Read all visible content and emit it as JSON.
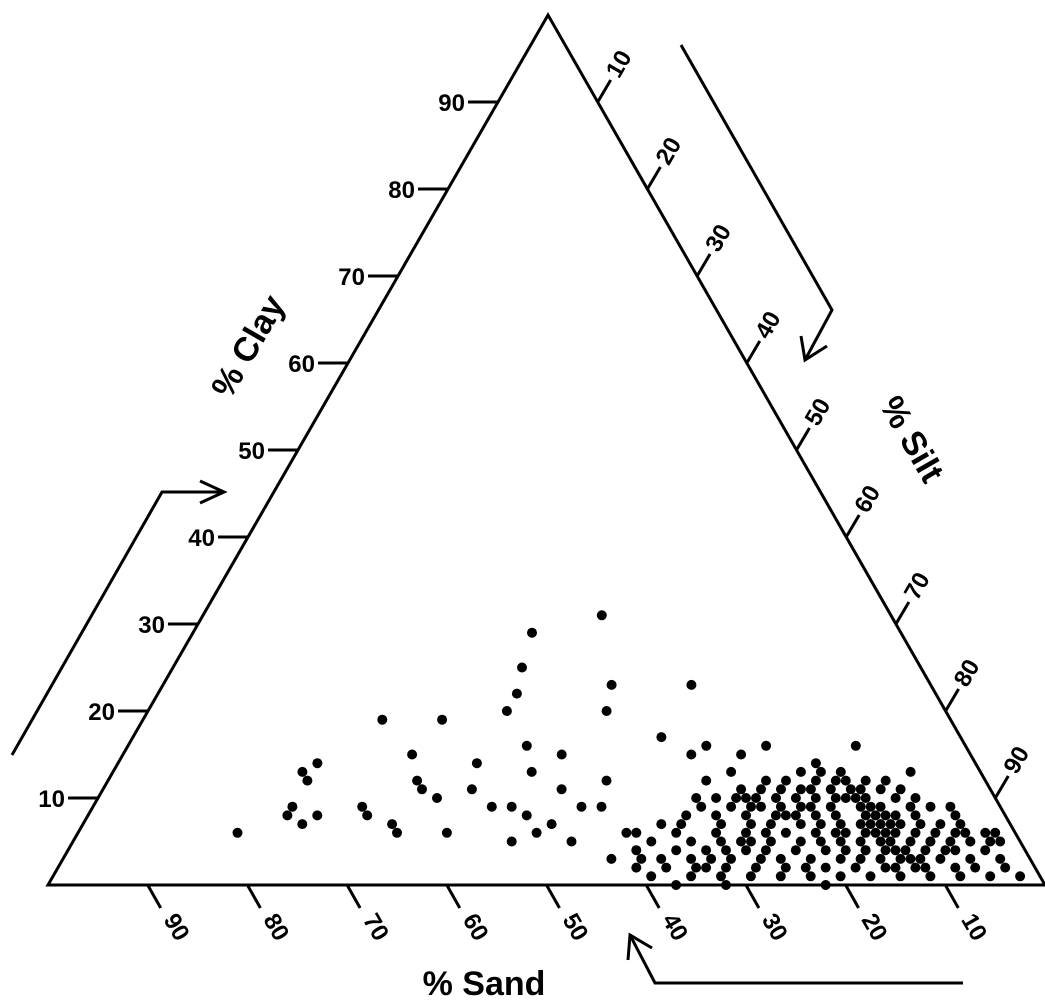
{
  "chart_data": {
    "type": "scatter",
    "subtype": "ternary",
    "axes": {
      "clay": {
        "label": "% Clay",
        "ticks": [
          10,
          20,
          30,
          40,
          50,
          60,
          70,
          80,
          90
        ]
      },
      "silt": {
        "label": "% Silt",
        "ticks": [
          10,
          20,
          30,
          40,
          50,
          60,
          70,
          80,
          90
        ]
      },
      "sand": {
        "label": "% Sand",
        "ticks": [
          90,
          80,
          70,
          60,
          50,
          40,
          30,
          20,
          10
        ]
      }
    },
    "range": [
      0,
      100
    ],
    "grid": false,
    "legend": "none",
    "marker_color": "#000000",
    "points": [
      [
        13,
        80,
        7
      ],
      [
        6,
        81,
        13
      ],
      [
        5,
        84,
        11
      ],
      [
        7,
        81,
        12
      ],
      [
        10,
        75,
        15
      ],
      [
        8,
        70,
        22
      ],
      [
        9,
        69,
        22
      ],
      [
        10,
        65,
        25
      ],
      [
        5,
        67,
        28
      ],
      [
        9,
        67,
        24
      ],
      [
        31,
        40,
        29
      ],
      [
        29,
        34,
        37
      ],
      [
        23,
        53,
        24
      ],
      [
        23,
        45,
        32
      ],
      [
        20,
        46,
        34
      ],
      [
        25,
        35,
        40
      ],
      [
        22,
        36,
        42
      ],
      [
        20,
        36,
        44
      ],
      [
        16,
        58,
        26
      ],
      [
        17,
        53,
        30
      ],
      [
        15,
        44,
        41
      ],
      [
        16,
        40,
        44
      ],
      [
        15,
        29,
        56
      ],
      [
        19,
        30,
        51
      ],
      [
        19,
        24,
        57
      ],
      [
        14,
        20,
        66
      ],
      [
        13,
        19,
        68
      ],
      [
        12,
        20,
        68
      ],
      [
        9,
        51,
        40
      ],
      [
        9,
        49,
        42
      ],
      [
        9,
        42,
        49
      ],
      [
        9,
        40,
        51
      ],
      [
        8,
        44,
        48
      ],
      [
        7,
        47,
        46
      ],
      [
        6,
        46,
        48
      ],
      [
        10,
        34,
        56
      ],
      [
        12,
        31,
        57
      ],
      [
        11,
        32,
        57
      ],
      [
        9,
        27,
        64
      ],
      [
        8,
        28,
        64
      ],
      [
        8,
        23,
        69
      ],
      [
        7,
        22,
        71
      ],
      [
        5,
        44,
        51
      ],
      [
        6,
        56,
        38
      ],
      [
        6,
        37,
        57
      ],
      [
        6,
        32,
        62
      ],
      [
        7,
        31,
        62
      ],
      [
        8,
        20,
        72
      ],
      [
        9,
        20,
        71
      ],
      [
        6,
        16,
        78
      ],
      [
        14,
        36,
        50
      ],
      [
        13,
        42,
        45
      ],
      [
        16,
        64,
        20
      ],
      [
        16,
        73,
        11
      ],
      [
        15,
        62,
        23
      ],
      [
        15,
        57,
        28
      ],
      [
        11,
        46,
        43
      ],
      [
        10,
        62,
        28
      ],
      [
        12,
        50,
        38
      ],
      [
        11,
        37,
        52
      ],
      [
        4,
        80,
        16
      ],
      [
        2,
        87,
        11
      ],
      [
        1,
        91,
        8
      ],
      [
        5,
        90,
        5
      ],
      [
        6,
        88,
        6
      ],
      [
        5,
        86,
        9
      ],
      [
        4,
        78,
        18
      ],
      [
        3,
        80,
        17
      ],
      [
        2,
        75,
        23
      ],
      [
        1,
        70,
        29
      ],
      [
        12,
        60,
        28
      ],
      [
        13,
        62,
        25
      ],
      [
        11,
        70,
        19
      ],
      [
        7,
        60,
        33
      ],
      [
        6,
        55,
        39
      ],
      [
        5,
        50,
        45
      ],
      [
        3,
        60,
        37
      ],
      [
        2,
        65,
        33
      ],
      [
        4,
        70,
        26
      ],
      [
        3,
        75,
        22
      ],
      [
        10,
        80,
        10
      ],
      [
        11,
        78,
        11
      ],
      [
        12,
        74,
        14
      ],
      [
        9,
        77,
        14
      ],
      [
        8,
        75,
        17
      ],
      [
        7,
        78,
        15
      ],
      [
        6,
        76,
        18
      ],
      [
        5,
        73,
        22
      ],
      [
        4,
        76,
        20
      ],
      [
        3,
        72,
        25
      ],
      [
        2,
        80,
        18
      ],
      [
        1,
        85,
        14
      ],
      [
        2,
        90,
        8
      ],
      [
        3,
        88,
        9
      ],
      [
        4,
        86,
        10
      ],
      [
        5,
        82,
        13
      ],
      [
        6,
        84,
        10
      ],
      [
        7,
        86,
        7
      ],
      [
        8,
        83,
        9
      ],
      [
        9,
        82,
        9
      ],
      [
        10,
        72,
        18
      ],
      [
        11,
        71,
        18
      ],
      [
        12,
        68,
        20
      ],
      [
        11,
        66,
        23
      ],
      [
        10,
        68,
        22
      ],
      [
        9,
        71,
        20
      ],
      [
        8,
        73,
        19
      ],
      [
        7,
        74,
        19
      ],
      [
        6,
        71,
        23
      ],
      [
        5,
        70,
        25
      ],
      [
        4,
        68,
        28
      ],
      [
        3,
        67,
        30
      ],
      [
        2,
        70,
        28
      ],
      [
        1,
        76,
        23
      ],
      [
        0,
        78,
        22
      ],
      [
        1,
        82,
        17
      ],
      [
        2,
        84,
        14
      ],
      [
        3,
        85,
        12
      ],
      [
        4,
        83,
        13
      ],
      [
        5,
        79,
        16
      ],
      [
        6,
        79,
        15
      ],
      [
        7,
        76,
        17
      ],
      [
        8,
        78,
        14
      ],
      [
        9,
        74,
        17
      ],
      [
        10,
        70,
        20
      ],
      [
        11,
        68,
        21
      ],
      [
        12,
        66,
        22
      ],
      [
        10,
        66,
        24
      ],
      [
        9,
        64,
        27
      ],
      [
        8,
        66,
        26
      ],
      [
        7,
        69,
        24
      ],
      [
        6,
        67,
        27
      ],
      [
        5,
        65,
        30
      ],
      [
        4,
        64,
        32
      ],
      [
        3,
        63,
        34
      ],
      [
        2,
        67,
        31
      ],
      [
        1,
        73,
        26
      ],
      [
        1,
        79,
        20
      ],
      [
        2,
        77,
        21
      ],
      [
        3,
        78,
        19
      ],
      [
        4,
        80,
        16
      ],
      [
        5,
        77,
        18
      ],
      [
        6,
        74,
        20
      ],
      [
        7,
        72,
        21
      ],
      [
        8,
        69,
        23
      ],
      [
        9,
        66,
        25
      ],
      [
        10,
        64,
        26
      ],
      [
        8,
        63,
        29
      ],
      [
        7,
        64,
        29
      ],
      [
        6,
        64,
        30
      ],
      [
        5,
        62,
        33
      ],
      [
        4,
        61,
        35
      ],
      [
        3,
        58,
        39
      ],
      [
        2,
        61,
        37
      ],
      [
        1,
        64,
        35
      ],
      [
        2,
        73,
        25
      ],
      [
        3,
        70,
        27
      ],
      [
        4,
        73,
        23
      ],
      [
        5,
        75,
        20
      ],
      [
        6,
        77,
        17
      ],
      [
        7,
        79,
        14
      ],
      [
        8,
        80,
        12
      ],
      [
        9,
        79,
        12
      ],
      [
        10,
        77,
        13
      ],
      [
        11,
        75,
        14
      ],
      [
        12,
        71,
        17
      ],
      [
        13,
        69,
        18
      ],
      [
        11,
        64,
        25
      ],
      [
        10,
        60,
        30
      ],
      [
        9,
        61,
        30
      ],
      [
        8,
        60,
        32
      ],
      [
        7,
        58,
        35
      ],
      [
        6,
        60,
        34
      ],
      [
        5,
        58,
        37
      ],
      [
        4,
        57,
        39
      ],
      [
        3,
        55,
        42
      ],
      [
        2,
        58,
        40
      ],
      [
        1,
        60,
        39
      ],
      [
        0,
        63,
        37
      ],
      [
        0,
        68,
        32
      ],
      [
        1,
        67,
        32
      ],
      [
        2,
        64,
        34
      ],
      [
        3,
        65,
        32
      ],
      [
        4,
        66,
        30
      ],
      [
        5,
        68,
        27
      ],
      [
        6,
        69,
        25
      ],
      [
        7,
        67,
        26
      ],
      [
        8,
        71,
        21
      ],
      [
        9,
        72,
        19
      ],
      [
        10,
        74,
        16
      ],
      [
        11,
        73,
        16
      ],
      [
        12,
        76,
        12
      ],
      [
        13,
        73,
        14
      ],
      [
        7,
        84,
        9
      ],
      [
        6,
        86,
        8
      ],
      [
        5,
        88,
        7
      ],
      [
        4,
        89,
        7
      ],
      [
        3,
        91,
        6
      ],
      [
        2,
        92,
        6
      ],
      [
        1,
        94,
        5
      ],
      [
        4,
        92,
        4
      ],
      [
        5,
        92,
        3
      ],
      [
        6,
        91,
        3
      ],
      [
        6,
        92,
        2
      ],
      [
        5,
        93,
        2
      ],
      [
        3,
        94,
        3
      ],
      [
        2,
        95,
        3
      ],
      [
        1,
        97,
        2
      ],
      [
        1,
        88,
        11
      ],
      [
        2,
        83,
        15
      ],
      [
        3,
        82,
        15
      ],
      [
        4,
        84,
        12
      ],
      [
        5,
        86,
        9
      ],
      [
        6,
        82,
        12
      ],
      [
        7,
        82,
        11
      ],
      [
        8,
        81,
        11
      ],
      [
        9,
        84,
        7
      ],
      [
        10,
        82,
        8
      ],
      [
        11,
        80,
        9
      ],
      [
        12,
        78,
        10
      ],
      [
        2,
        86,
        12
      ],
      [
        3,
        86,
        11
      ],
      [
        4,
        88,
        8
      ],
      [
        5,
        90,
        5
      ],
      [
        6,
        89,
        5
      ],
      [
        7,
        88,
        5
      ],
      [
        8,
        87,
        5
      ],
      [
        9,
        86,
        5
      ],
      [
        3,
        84,
        13
      ],
      [
        4,
        82,
        14
      ],
      [
        5,
        81,
        14
      ],
      [
        6,
        80,
        14
      ],
      [
        7,
        80,
        13
      ],
      [
        8,
        79,
        13
      ],
      [
        9,
        78,
        13
      ],
      [
        10,
        76,
        14
      ],
      [
        11,
        76,
        13
      ],
      [
        12,
        73,
        15
      ],
      [
        13,
        71,
        16
      ],
      [
        14,
        70,
        16
      ]
    ]
  }
}
